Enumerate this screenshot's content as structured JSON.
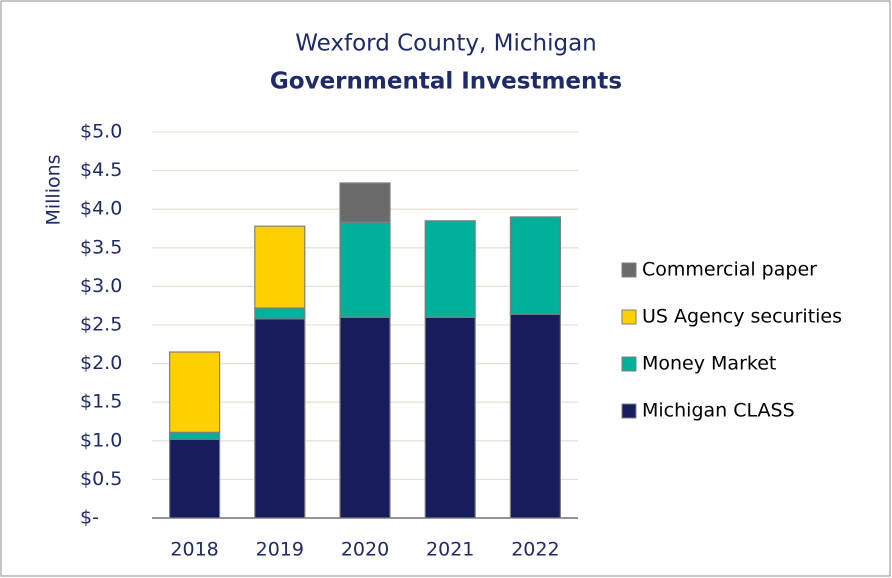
{
  "chart_data": {
    "type": "stacked_bar",
    "title": "Wexford County, Michigan",
    "subtitle": "Governmental Investments",
    "y_label": "Millions",
    "categories": [
      "2018",
      "2019",
      "2020",
      "2021",
      "2022"
    ],
    "series": [
      {
        "name": "Michigan CLASS",
        "color": "#171c5c",
        "values": [
          1.02,
          2.58,
          2.6,
          2.6,
          2.64
        ]
      },
      {
        "name": "Money Market",
        "color": "#00b09b",
        "values": [
          0.09,
          0.14,
          1.23,
          1.25,
          1.26
        ]
      },
      {
        "name": "US Agency securities",
        "color": "#ffd000",
        "values": [
          1.04,
          1.06,
          0,
          0,
          0
        ]
      },
      {
        "name": "Commercial paper",
        "color": "#6b6b6b",
        "values": [
          0,
          0,
          0.51,
          0,
          0
        ]
      }
    ],
    "ylim": [
      0,
      5
    ],
    "yticks": [
      {
        "value": 0,
        "label": "$-"
      },
      {
        "value": 0.5,
        "label": "$0.5"
      },
      {
        "value": 1,
        "label": "$1.0"
      },
      {
        "value": 1.5,
        "label": "$1.5"
      },
      {
        "value": 2,
        "label": "$2.0"
      },
      {
        "value": 2.5,
        "label": "$2.5"
      },
      {
        "value": 3,
        "label": "$3.0"
      },
      {
        "value": 3.5,
        "label": "$3.5"
      },
      {
        "value": 4,
        "label": "$4.0"
      },
      {
        "value": 4.5,
        "label": "$4.5"
      },
      {
        "value": 5,
        "label": "$5.0"
      }
    ],
    "grid": true,
    "legend": "right"
  }
}
